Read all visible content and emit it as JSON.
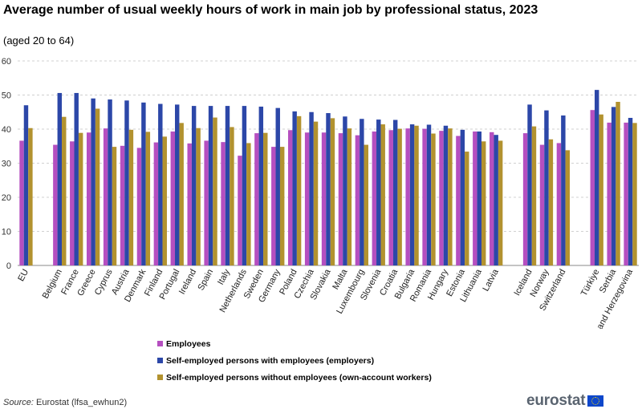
{
  "header": {
    "title": "Average number of usual weekly hours of work in main job by professional status, 2023",
    "subtitle": "(aged 20 to 64)"
  },
  "footer": {
    "source_label": "Source:",
    "source_text": "Eurostat",
    "source_code": "(lfsa_ewhun2)",
    "logo_text": "eurostat"
  },
  "colors": {
    "employees": "#b54fc0",
    "employers": "#2c47a8",
    "own_account": "#b2922f"
  },
  "chart_data": {
    "type": "bar",
    "title": "Average number of usual weekly hours of work in main job by professional status, 2023",
    "subtitle": "(aged 20 to 64)",
    "xlabel": "",
    "ylabel": "",
    "ylim": [
      0,
      60
    ],
    "yticks": [
      0,
      10,
      20,
      30,
      40,
      50,
      60
    ],
    "grid": true,
    "legend_position": "bottom",
    "categories": [
      "EU",
      "Belgium",
      "France",
      "Greece",
      "Cyprus",
      "Austria",
      "Denmark",
      "Finland",
      "Portugal",
      "Ireland",
      "Spain",
      "Italy",
      "Netherlands",
      "Sweden",
      "Germany",
      "Poland",
      "Czechia",
      "Slovakia",
      "Malta",
      "Luxembourg",
      "Slovenia",
      "Croatia",
      "Bulgaria",
      "Romania",
      "Hungary",
      "Estonia",
      "Lithuania",
      "Latvia",
      "Iceland",
      "Norway",
      "Switzerland",
      "Türkiye",
      "Serbia",
      "Bosnia and Herzegovina"
    ],
    "groups_before_gap": [
      1,
      28,
      31
    ],
    "series": [
      {
        "name": "Employees",
        "color": "#b54fc0",
        "values": [
          36.6,
          35.4,
          36.4,
          39.0,
          40.2,
          35.1,
          34.5,
          36.1,
          39.3,
          35.8,
          36.6,
          36.2,
          32.2,
          38.8,
          34.8,
          39.7,
          39.0,
          39.0,
          38.8,
          38.2,
          39.3,
          39.7,
          40.2,
          40.1,
          39.5,
          38.0,
          39.3,
          39.1,
          38.8,
          35.4,
          35.9,
          45.6,
          41.9,
          41.9
        ]
      },
      {
        "name": "Self-employed persons with employees (employers)",
        "color": "#2c47a8",
        "values": [
          47.0,
          50.6,
          50.6,
          49.0,
          48.7,
          48.4,
          47.8,
          47.4,
          47.2,
          46.8,
          46.8,
          46.8,
          46.8,
          46.6,
          46.2,
          45.2,
          45.0,
          44.7,
          43.7,
          43.0,
          42.8,
          42.7,
          41.4,
          41.3,
          41.0,
          39.8,
          39.3,
          38.3,
          47.2,
          45.5,
          44.0,
          51.5,
          46.5,
          43.3
        ]
      },
      {
        "name": "Self-employed persons without employees (own-account workers)",
        "color": "#b2922f",
        "values": [
          40.3,
          43.6,
          38.9,
          46.0,
          34.8,
          39.8,
          39.2,
          37.8,
          41.8,
          40.3,
          43.4,
          40.6,
          35.9,
          38.9,
          34.8,
          43.8,
          42.2,
          43.2,
          40.2,
          35.4,
          41.4,
          40.1,
          41.0,
          38.7,
          40.2,
          33.4,
          36.4,
          36.6,
          40.8,
          37.0,
          33.8,
          44.3,
          48.0,
          41.8
        ]
      }
    ]
  }
}
